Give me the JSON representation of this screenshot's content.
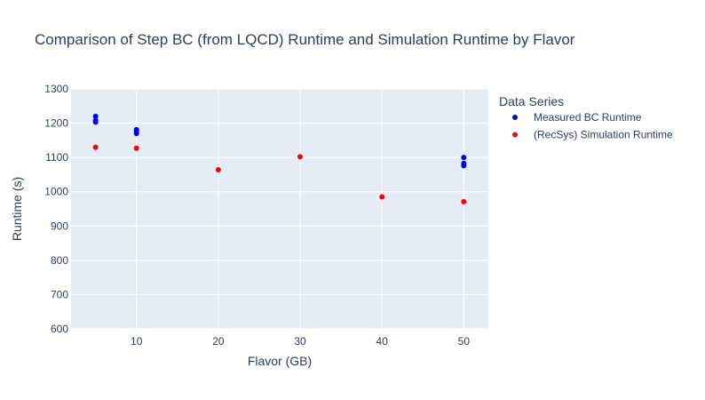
{
  "chart_data": {
    "type": "scatter",
    "title": "Comparison of Step BC (from LQCD) Runtime and Simulation Runtime by Flavor",
    "xlabel": "Flavor (GB)",
    "ylabel": "Runtime (s)",
    "xlim": [
      2,
      53
    ],
    "ylim": [
      600,
      1300
    ],
    "xticks": [
      10,
      20,
      30,
      40,
      50
    ],
    "yticks": [
      600,
      700,
      800,
      900,
      1000,
      1100,
      1200,
      1300
    ],
    "grid": true,
    "legend_title": "Data Series",
    "legend_position": "top-right",
    "series": [
      {
        "name": "Measured BC Runtime",
        "color": "#0000ff",
        "points": [
          {
            "x": 5,
            "y": 1220
          },
          {
            "x": 5,
            "y": 1208
          },
          {
            "x": 5,
            "y": 1203
          },
          {
            "x": 10,
            "y": 1181
          },
          {
            "x": 10,
            "y": 1176
          },
          {
            "x": 10,
            "y": 1170
          },
          {
            "x": 50,
            "y": 1100
          },
          {
            "x": 50,
            "y": 1083
          },
          {
            "x": 50,
            "y": 1076
          }
        ]
      },
      {
        "name": "(RecSys) Simulation Runtime",
        "color": "#ff0000",
        "points": [
          {
            "x": 5,
            "y": 1130
          },
          {
            "x": 10,
            "y": 1127
          },
          {
            "x": 20,
            "y": 1064
          },
          {
            "x": 30,
            "y": 1102
          },
          {
            "x": 40,
            "y": 985
          },
          {
            "x": 50,
            "y": 971
          }
        ]
      }
    ]
  },
  "colors": {
    "plot_background": "#e5ecf6",
    "gridline": "#ffffff",
    "text": "#2a3f5f"
  }
}
